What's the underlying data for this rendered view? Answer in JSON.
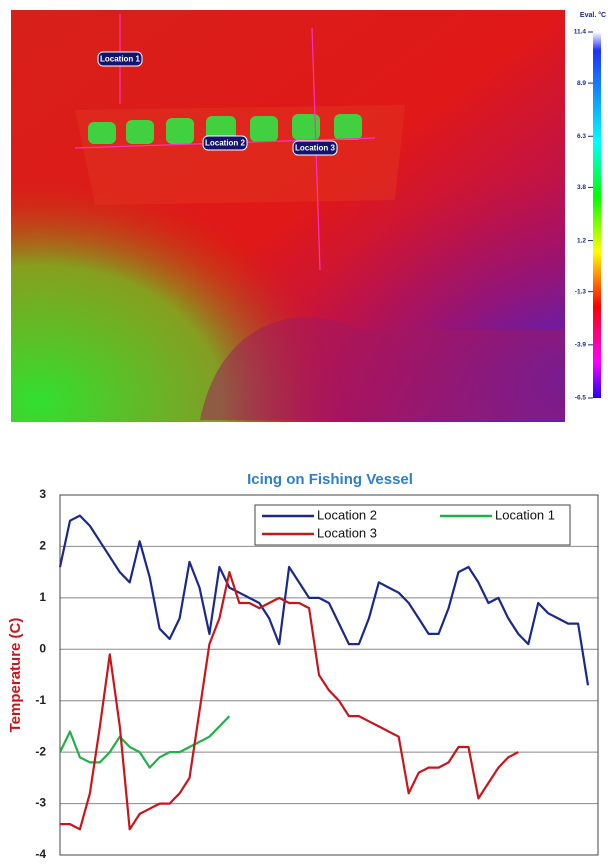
{
  "thermal_image": {
    "markers": [
      "Location 1",
      "Location 2",
      "Location 3"
    ],
    "colorbar_title": "Eval. °C",
    "colorbar_lim": [
      -6.5,
      11.4
    ],
    "colorbar_ticks": [
      11.4,
      8.9,
      6.3,
      3.8,
      1.2,
      -1.3,
      -3.9,
      -6.5
    ]
  },
  "chart_data": {
    "type": "line",
    "title": "Icing on Fishing Vessel",
    "y_label": "Temperature (C)",
    "ylim": [
      -4,
      3
    ],
    "yticks": [
      -4,
      -3,
      -2,
      -1,
      0,
      1,
      2,
      3
    ],
    "grid": true,
    "legend": "top-right",
    "categories": [
      null,
      null,
      null,
      null,
      null,
      null,
      null,
      null,
      null,
      null,
      null,
      null,
      null,
      null,
      null,
      null,
      null,
      null,
      null,
      null,
      null,
      null,
      null,
      null,
      null,
      null,
      null,
      null,
      null,
      null,
      null,
      null,
      null,
      null,
      null,
      null,
      null,
      null,
      null,
      null,
      null,
      null,
      null,
      null,
      null,
      null,
      null,
      null,
      null,
      null,
      null,
      null,
      null,
      null
    ],
    "series": [
      {
        "name": "Location 2",
        "color": "#1a2a8c",
        "values": [
          1.6,
          2.5,
          2.6,
          2.4,
          2.1,
          1.8,
          1.5,
          1.3,
          2.1,
          1.4,
          0.4,
          0.2,
          0.6,
          1.7,
          1.2,
          0.3,
          1.6,
          1.2,
          1.1,
          1.0,
          0.9,
          0.6,
          0.1,
          1.6,
          1.3,
          1.0,
          1.0,
          0.9,
          0.5,
          0.1,
          0.1,
          0.6,
          1.3,
          1.2,
          1.1,
          0.9,
          0.6,
          0.3,
          0.3,
          0.8,
          1.5,
          1.6,
          1.3,
          0.9,
          1.0,
          0.6,
          0.3,
          0.1,
          0.9,
          0.7,
          0.6,
          0.5,
          0.5,
          -0.7
        ]
      },
      {
        "name": "Location 1",
        "color": "#22b04a",
        "values": [
          -2.0,
          -1.6,
          -2.1,
          -2.2,
          -2.2,
          -2.0,
          -1.7,
          -1.9,
          -2.0,
          -2.3,
          -2.1,
          -2.0,
          -2.0,
          -1.9,
          -1.8,
          -1.7,
          -1.5,
          -1.3,
          null,
          null,
          null,
          null,
          null,
          null,
          null,
          null,
          null,
          null,
          null,
          null,
          null,
          null,
          null,
          null,
          null,
          null,
          null,
          null,
          null,
          null,
          null,
          null,
          null,
          null,
          null,
          null,
          null,
          null,
          null,
          null,
          null,
          null,
          null,
          null
        ]
      },
      {
        "name": "Location 3",
        "color": "#c8161d",
        "values": [
          -3.4,
          -3.4,
          -3.5,
          -2.8,
          -1.5,
          -0.1,
          -1.5,
          -3.5,
          -3.2,
          -3.1,
          -3.0,
          -3.0,
          -2.8,
          -2.5,
          -1.2,
          0.1,
          0.6,
          1.5,
          0.9,
          0.9,
          0.8,
          0.9,
          1.0,
          0.9,
          0.9,
          0.8,
          -0.5,
          -0.8,
          -1.0,
          -1.3,
          -1.3,
          -1.4,
          -1.5,
          -1.6,
          -1.7,
          -2.8,
          -2.4,
          -2.3,
          -2.3,
          -2.2,
          -1.9,
          -1.9,
          -2.9,
          -2.6,
          -2.3,
          -2.1,
          -2.0,
          null,
          null,
          null,
          null,
          null,
          null,
          null
        ]
      }
    ]
  }
}
